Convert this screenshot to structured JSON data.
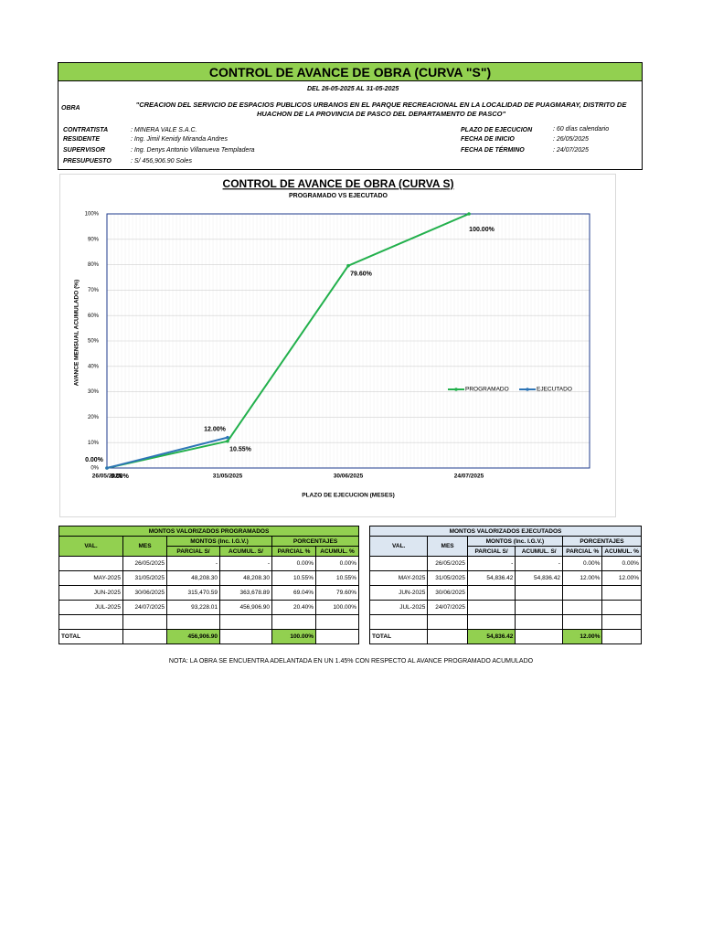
{
  "header": {
    "title": "CONTROL DE AVANCE DE OBRA (CURVA \"S\")",
    "period": "DEL 26-05-2025  AL 31-05-2025",
    "obra_label": "OBRA",
    "obra": "\"CREACION DEL SERVICIO DE ESPACIOS PUBLICOS URBANOS EN EL PARQUE RECREACIONAL EN LA LOCALIDAD DE PUAGMARAY, DISTRITO DE HUACHON DE LA PROVINCIA DE PASCO DEL DEPARTAMENTO DE PASCO\"",
    "fields": [
      {
        "label": "CONTRATISTA",
        "value": ": MINERA VALE S.A.C."
      },
      {
        "label": "RESIDENTE",
        "value": ": Ing. Jimil Kenidy Miranda Andres"
      },
      {
        "label": "SUPERVISOR",
        "value": ": Ing. Denys Antonio Villanueva Templadera"
      },
      {
        "label": "PRESUPUESTO",
        "value": ": S/ 456,906.90 Soles"
      }
    ],
    "right_fields": [
      {
        "label": "PLAZO DE EJECUCION",
        "value": ": 60 días calendario"
      },
      {
        "label": "FECHA DE INICIO",
        "value": ": 26/05/2025"
      },
      {
        "label": "FECHA DE TÉRMINO",
        "value": ": 24/07/2025"
      }
    ]
  },
  "chart_data": {
    "type": "line",
    "title": "CONTROL DE AVANCE DE OBRA (CURVA S)",
    "subtitle": "PROGRAMADO VS EJECUTADO",
    "x_label": "PLAZO DE EJECUCION (MESES)",
    "y_label": "AVANCE MENSUAL ACUMULADO (%)",
    "categories": [
      "26/05/2025",
      "31/05/2025",
      "30/06/2025",
      "24/07/2025",
      null
    ],
    "series": [
      {
        "name": "PROGRAMADO",
        "color": "#22b04c",
        "values": [
          0,
          10.55,
          79.6,
          100,
          null
        ],
        "value_labels": [
          "0.00%",
          "10.55%",
          "79.60%",
          "100.00%",
          null
        ]
      },
      {
        "name": "EJECUTADO",
        "color": "#2e75b6",
        "values": [
          0,
          12,
          null,
          null,
          null
        ],
        "value_labels": [
          "0.00%",
          "12.00%",
          null,
          null,
          null
        ]
      }
    ],
    "ylim": [
      0,
      100
    ],
    "yticks": [
      {
        "value": 0,
        "label": "0%"
      },
      {
        "value": 10,
        "label": "10%"
      },
      {
        "value": 20,
        "label": "20%"
      },
      {
        "value": 30,
        "label": "30%"
      },
      {
        "value": 40,
        "label": "40%"
      },
      {
        "value": 50,
        "label": "50%"
      },
      {
        "value": 60,
        "label": "60%"
      },
      {
        "value": 70,
        "label": "70%"
      },
      {
        "value": 80,
        "label": "80%"
      },
      {
        "value": 90,
        "label": "90%"
      },
      {
        "value": 100,
        "label": "100%"
      }
    ],
    "grid": true,
    "legend": "right"
  },
  "tables": [
    {
      "title": "MONTOS VALORIZADOS PROGRAMADOS",
      "headers": [
        "VAL.",
        "MES",
        "MONTOS (Inc. I.G.V.)",
        "PORCENTAJES"
      ],
      "subheaders": [
        "PARCIAL S/",
        "ACUMUL. S/",
        "PARCIAL %",
        "ACUMUL. %"
      ],
      "rows": [
        [
          null,
          "26/05/2025",
          "-",
          "-",
          "0.00%",
          "0.00%"
        ],
        [
          "MAY-2025",
          "31/05/2025",
          "48,208.30",
          "48,208.30",
          "10.55%",
          "10.55%"
        ],
        [
          "JUN-2025",
          "30/06/2025",
          "315,470.59",
          "363,678.89",
          "69.04%",
          "79.60%"
        ],
        [
          "JUL-2025",
          "24/07/2025",
          "93,228.01",
          "456,906.90",
          "20.40%",
          "100.00%"
        ],
        [
          null,
          null,
          null,
          null,
          null,
          null
        ]
      ],
      "total": [
        "TOTAL",
        null,
        "456,906.90",
        null,
        "100.00%",
        null
      ]
    },
    {
      "title": "MONTOS VALORIZADOS EJECUTADOS",
      "headers": [
        "VAL.",
        "MES",
        "MONTOS (Inc. I.G.V.)",
        "PORCENTAJES"
      ],
      "subheaders": [
        "PARCIAL S/",
        "ACUMUL. S/",
        "PARCIAL %",
        "ACUMUL. %"
      ],
      "rows": [
        [
          null,
          "26/05/2025",
          "-",
          "-",
          "0.00%",
          "0.00%"
        ],
        [
          "MAY-2025",
          "31/05/2025",
          "54,836.42",
          "54,836.42",
          "12.00%",
          "12.00%"
        ],
        [
          "JUN-2025",
          "30/06/2025",
          null,
          null,
          null,
          null
        ],
        [
          "JUL-2025",
          "24/07/2025",
          null,
          null,
          null,
          null
        ],
        [
          null,
          null,
          null,
          null,
          null,
          null
        ]
      ],
      "total": [
        "TOTAL",
        null,
        "54,836.42",
        null,
        "12.00%",
        null
      ]
    }
  ],
  "note": "NOTA: LA OBRA SE ENCUENTRA ADELANTADA EN UN  1.45% CON RESPECTO AL AVANCE PROGRAMADO ACUMULADO"
}
